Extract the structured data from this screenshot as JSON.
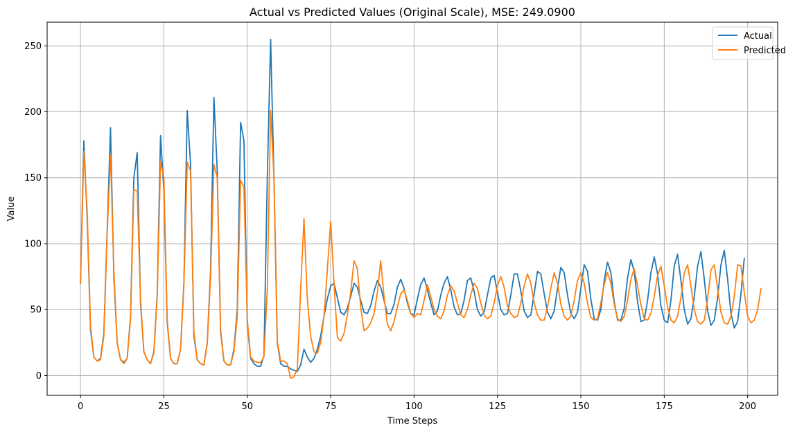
{
  "chart_data": {
    "type": "line",
    "title": "Actual vs Predicted Values (Original Scale), MSE: 249.0900",
    "xlabel": "Time Steps",
    "ylabel": "Value",
    "xlim": [
      -10,
      209
    ],
    "ylim": [
      -15,
      268
    ],
    "xticks": [
      0,
      25,
      50,
      75,
      100,
      125,
      150,
      175,
      200
    ],
    "yticks": [
      0,
      50,
      100,
      150,
      200,
      250
    ],
    "grid": true,
    "legend_position": "top-right",
    "series": [
      {
        "name": "Actual",
        "color": "#1f77b4",
        "values": [
          70,
          178,
          120,
          35,
          14,
          11,
          13,
          32,
          110,
          188,
          75,
          25,
          12,
          10,
          13,
          45,
          150,
          169,
          55,
          18,
          12,
          9,
          18,
          62,
          182,
          140,
          40,
          13,
          9,
          9,
          20,
          70,
          201,
          160,
          30,
          12,
          9,
          8,
          25,
          80,
          211,
          155,
          33,
          11,
          8,
          8,
          20,
          50,
          192,
          178,
          40,
          13,
          9,
          7,
          7,
          15,
          150,
          255,
          150,
          25,
          9,
          7,
          7,
          5,
          4,
          3,
          8,
          20,
          14,
          10,
          13,
          20,
          30,
          45,
          58,
          68,
          70,
          59,
          48,
          46,
          51,
          60,
          70,
          67,
          57,
          48,
          47,
          53,
          64,
          72,
          67,
          57,
          47,
          47,
          54,
          67,
          73,
          66,
          55,
          47,
          46,
          58,
          69,
          74,
          65,
          55,
          46,
          49,
          61,
          70,
          75,
          65,
          52,
          46,
          47,
          57,
          72,
          74,
          64,
          50,
          45,
          48,
          61,
          74,
          76,
          63,
          50,
          46,
          47,
          61,
          77,
          77,
          64,
          49,
          44,
          46,
          62,
          79,
          77,
          62,
          48,
          43,
          49,
          66,
          82,
          78,
          61,
          47,
          43,
          48,
          66,
          84,
          79,
          58,
          43,
          42,
          50,
          72,
          86,
          78,
          56,
          42,
          42,
          51,
          74,
          88,
          79,
          56,
          41,
          42,
          57,
          78,
          90,
          77,
          53,
          42,
          40,
          57,
          83,
          92,
          72,
          50,
          39,
          43,
          60,
          83,
          94,
          73,
          49,
          38,
          42,
          59,
          84,
          95,
          73,
          47,
          36,
          41,
          62,
          89
        ]
      },
      {
        "name": "Predicted",
        "color": "#ff7f0e",
        "values": [
          70,
          170,
          125,
          38,
          14,
          11,
          12,
          30,
          108,
          167,
          80,
          25,
          12,
          9,
          13,
          43,
          141,
          140,
          58,
          18,
          12,
          9,
          17,
          60,
          162,
          150,
          42,
          13,
          9,
          9,
          20,
          68,
          162,
          155,
          33,
          12,
          9,
          8,
          24,
          75,
          160,
          150,
          35,
          11,
          8,
          8,
          18,
          45,
          148,
          143,
          43,
          14,
          11,
          10,
          10,
          14,
          65,
          201,
          150,
          26,
          11,
          11,
          9,
          -2,
          -1,
          5,
          65,
          119,
          58,
          30,
          18,
          17,
          25,
          45,
          80,
          117,
          70,
          29,
          26,
          32,
          46,
          63,
          87,
          81,
          52,
          34,
          36,
          40,
          47,
          63,
          87,
          60,
          39,
          34,
          41,
          52,
          62,
          65,
          57,
          47,
          44,
          47,
          46,
          57,
          69,
          60,
          50,
          45,
          43,
          49,
          61,
          68,
          64,
          55,
          46,
          44,
          50,
          61,
          70,
          66,
          55,
          46,
          43,
          45,
          55,
          68,
          75,
          67,
          53,
          47,
          44,
          45,
          55,
          68,
          77,
          70,
          55,
          46,
          42,
          42,
          52,
          66,
          78,
          70,
          54,
          45,
          42,
          45,
          57,
          72,
          78,
          70,
          55,
          44,
          42,
          43,
          55,
          69,
          78,
          70,
          54,
          43,
          41,
          45,
          57,
          73,
          81,
          68,
          54,
          43,
          42,
          47,
          60,
          76,
          83,
          68,
          52,
          42,
          40,
          45,
          59,
          78,
          84,
          68,
          50,
          41,
          39,
          42,
          58,
          80,
          84,
          66,
          48,
          40,
          39,
          45,
          60,
          84,
          83,
          63,
          45,
          40,
          42,
          50,
          66
        ]
      }
    ]
  }
}
